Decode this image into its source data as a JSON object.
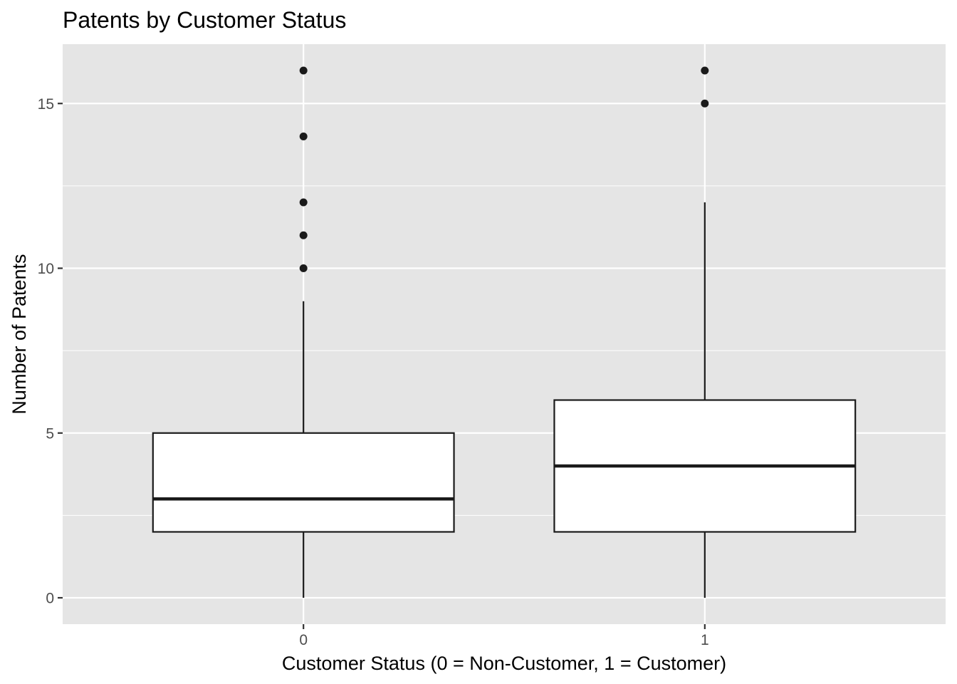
{
  "chart_data": {
    "type": "boxplot",
    "title": "Patents by Customer Status",
    "xlabel": "Customer Status (0 = Non-Customer, 1 = Customer)",
    "ylabel": "Number of Patents",
    "categories": [
      "0",
      "1"
    ],
    "ylim": [
      -0.8,
      16.8
    ],
    "yticks": [
      0,
      5,
      10,
      15
    ],
    "ytick_labels": [
      "0",
      "5",
      "10",
      "15"
    ],
    "grid": true,
    "boxes": [
      {
        "category": "0",
        "whisker_low": 0,
        "q1": 2,
        "median": 3,
        "q3": 5,
        "whisker_high": 9,
        "outliers": [
          10,
          11,
          12,
          14,
          16
        ]
      },
      {
        "category": "1",
        "whisker_low": 0,
        "q1": 2,
        "median": 4,
        "q3": 6,
        "whisker_high": 12,
        "outliers": [
          15,
          16
        ]
      }
    ]
  },
  "colors": {
    "panel_background": "#e5e5e5",
    "grid": "#ffffff",
    "box_fill": "#ffffff",
    "box_line": "#1a1a1a",
    "outlier": "#1a1a1a",
    "tick_text": "#4d4d4d",
    "tick_mark": "#333333"
  }
}
